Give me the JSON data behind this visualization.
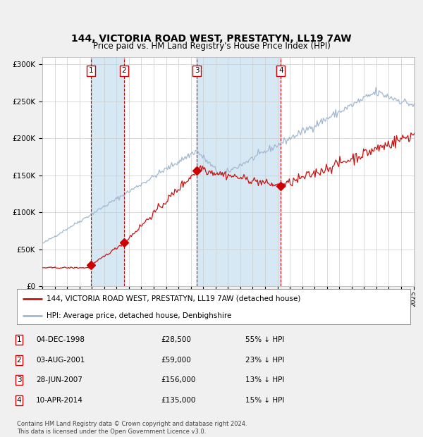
{
  "title": "144, VICTORIA ROAD WEST, PRESTATYN, LL19 7AW",
  "subtitle": "Price paid vs. HM Land Registry's House Price Index (HPI)",
  "title_fontsize": 10,
  "subtitle_fontsize": 8.5,
  "ylim": [
    0,
    310000
  ],
  "yticks": [
    0,
    50000,
    100000,
    150000,
    200000,
    250000,
    300000
  ],
  "ytick_labels": [
    "£0",
    "£50K",
    "£100K",
    "£150K",
    "£200K",
    "£250K",
    "£300K"
  ],
  "background_color": "#f0f0f0",
  "plot_bg_color": "#ffffff",
  "grid_color": "#cccccc",
  "hpi_line_color": "#a0b8d0",
  "price_line_color": "#cc1111",
  "sale_marker_color": "#cc0000",
  "sale_dates": [
    "1998-12-04",
    "2001-08-03",
    "2007-06-28",
    "2014-04-10"
  ],
  "sale_prices": [
    28500,
    59000,
    156000,
    135000
  ],
  "sale_labels": [
    "1",
    "2",
    "3",
    "4"
  ],
  "shade_color": "#d0e4f4",
  "vline_color": "#cc0000",
  "legend_property_label": "144, VICTORIA ROAD WEST, PRESTATYN, LL19 7AW (detached house)",
  "legend_hpi_label": "HPI: Average price, detached house, Denbighshire",
  "table_entries": [
    {
      "num": "1",
      "date": "04-DEC-1998",
      "price": "£28,500",
      "pct": "55% ↓ HPI"
    },
    {
      "num": "2",
      "date": "03-AUG-2001",
      "price": "£59,000",
      "pct": "23% ↓ HPI"
    },
    {
      "num": "3",
      "date": "28-JUN-2007",
      "price": "£156,000",
      "pct": "13% ↓ HPI"
    },
    {
      "num": "4",
      "date": "10-APR-2014",
      "price": "£135,000",
      "pct": "15% ↓ HPI"
    }
  ],
  "footnote": "Contains HM Land Registry data © Crown copyright and database right 2024.\nThis data is licensed under the Open Government Licence v3.0.",
  "x_start_year": 1995,
  "x_end_year": 2025
}
